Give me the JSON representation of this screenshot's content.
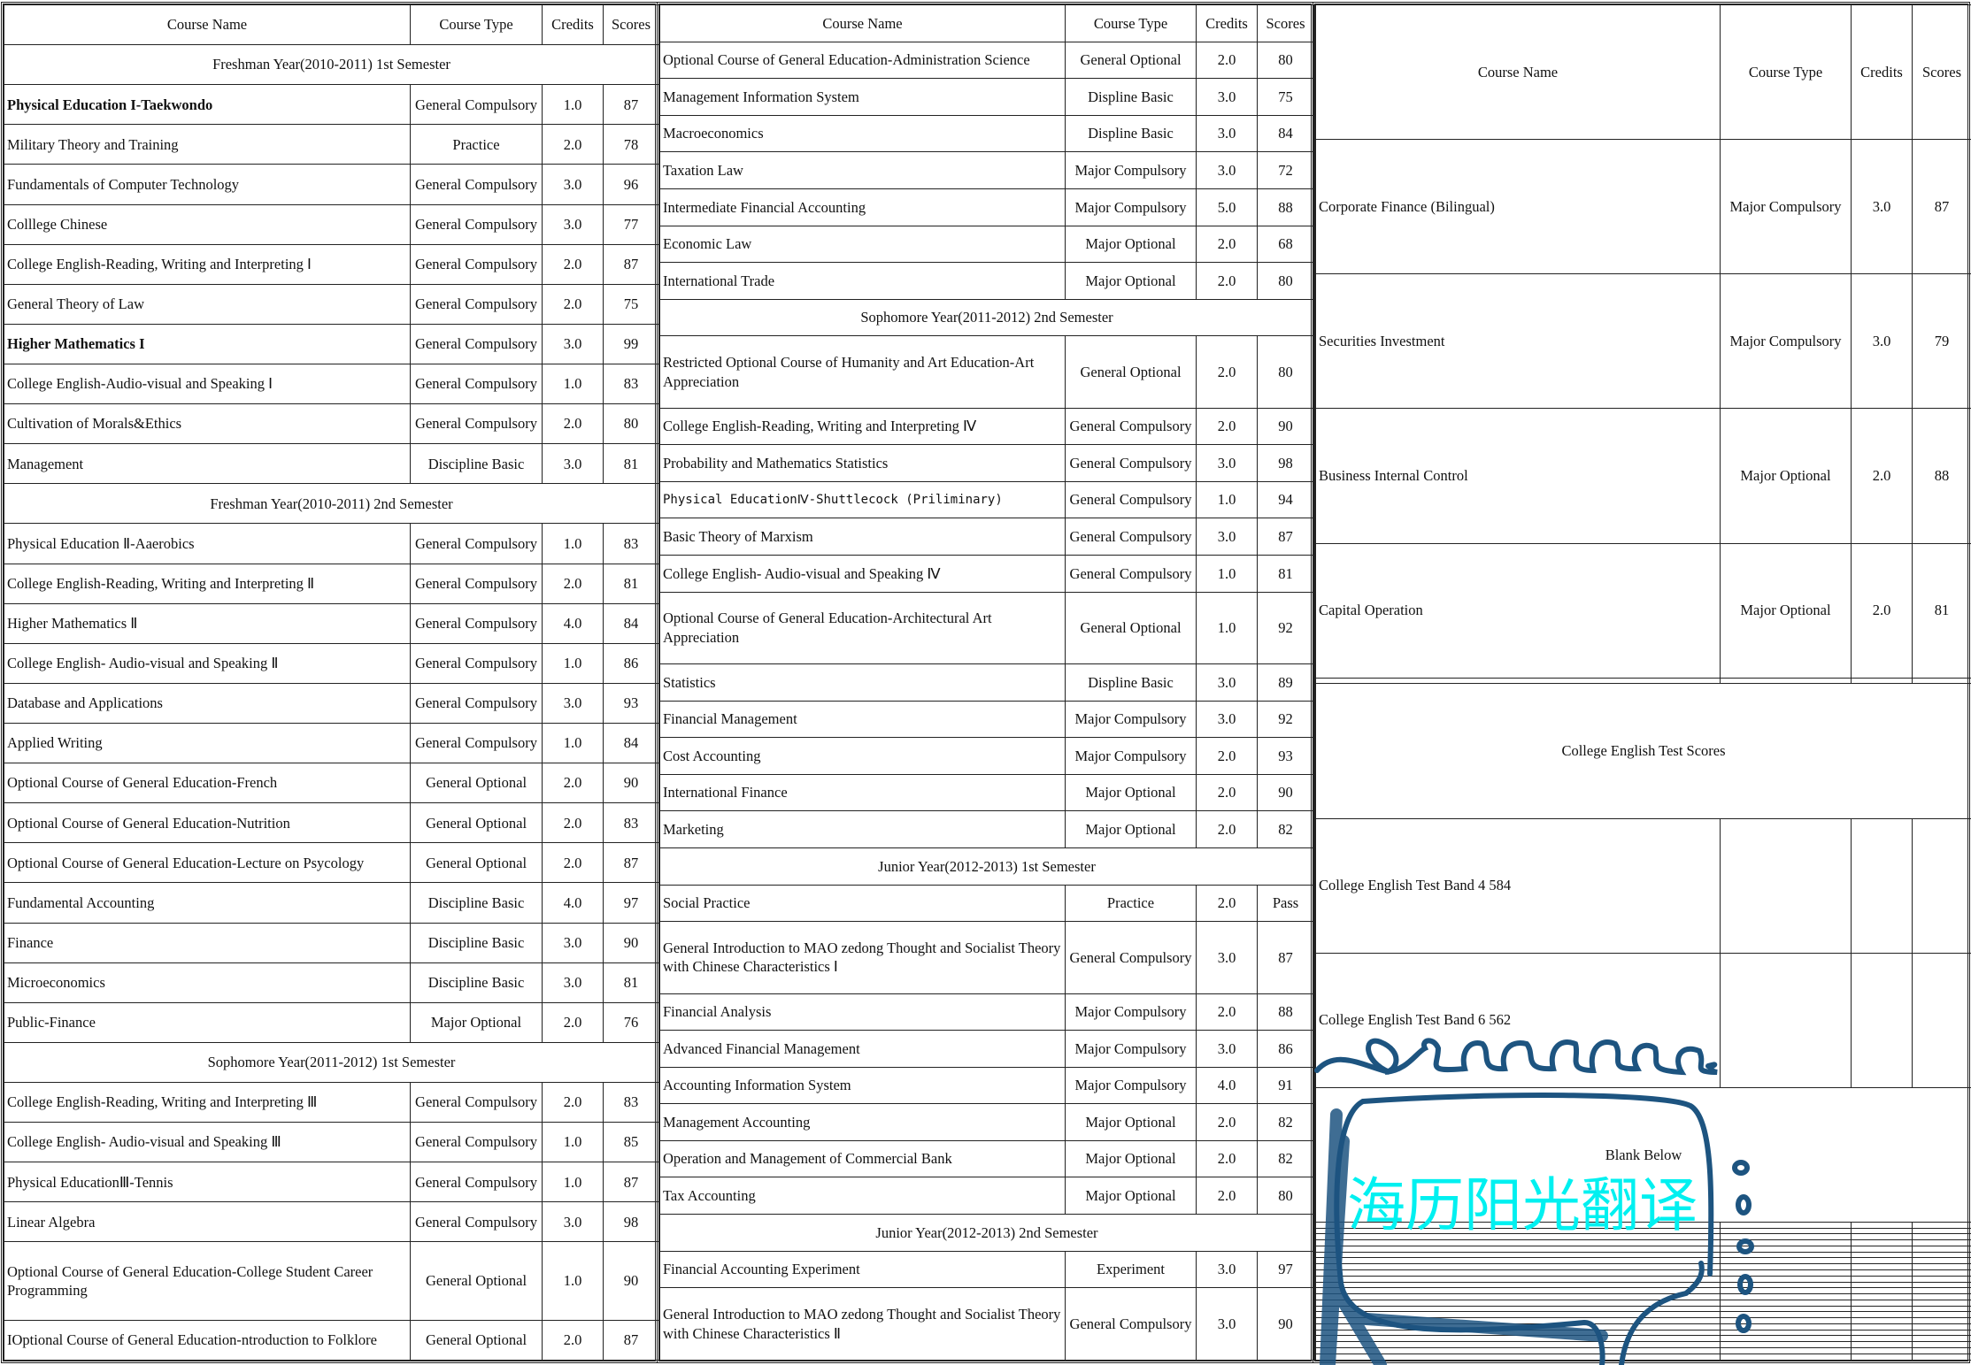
{
  "headers": [
    "Course Name",
    "Course Type",
    "Credits",
    "Scores"
  ],
  "columns": [
    {
      "rows": [
        {
          "section": "Freshman Year(2010-2011) 1st Semester"
        },
        {
          "name": "Physical Education I-Taekwondo",
          "type": "General Compulsory",
          "credits": "1.0",
          "score": "87",
          "bold": true
        },
        {
          "name": "Military Theory and Training",
          "type": "Practice",
          "credits": "2.0",
          "score": "78"
        },
        {
          "name": "Fundamentals of Computer Technology",
          "type": "General Compulsory",
          "credits": "3.0",
          "score": "96"
        },
        {
          "name": "Colllege Chinese",
          "type": "General Compulsory",
          "credits": "3.0",
          "score": "77"
        },
        {
          "name": "College English-Reading, Writing and Interpreting Ⅰ",
          "type": "General Compulsory",
          "credits": "2.0",
          "score": "87"
        },
        {
          "name": "General Theory of Law",
          "type": "General Compulsory",
          "credits": "2.0",
          "score": "75"
        },
        {
          "name": "Higher Mathematics I",
          "type": "General Compulsory",
          "credits": "3.0",
          "score": "99",
          "bold": true
        },
        {
          "name": "College English-Audio-visual and Speaking Ⅰ",
          "type": "General Compulsory",
          "credits": "1.0",
          "score": "83"
        },
        {
          "name": "Cultivation of Morals&Ethics",
          "type": "General Compulsory",
          "credits": "2.0",
          "score": "80"
        },
        {
          "name": "Management",
          "type": "Discipline Basic",
          "credits": "3.0",
          "score": "81"
        },
        {
          "section": "Freshman Year(2010-2011) 2nd Semester"
        },
        {
          "name": "Physical Education Ⅱ-Aaerobics",
          "type": "General Compulsory",
          "credits": "1.0",
          "score": "83"
        },
        {
          "name": "College English-Reading, Writing and Interpreting Ⅱ",
          "type": "General Compulsory",
          "credits": "2.0",
          "score": "81"
        },
        {
          "name": "Higher Mathematics Ⅱ",
          "type": "General Compulsory",
          "credits": "4.0",
          "score": "84"
        },
        {
          "name": "College English- Audio-visual and Speaking Ⅱ",
          "type": "General Compulsory",
          "credits": "1.0",
          "score": "86"
        },
        {
          "name": "Database and Applications",
          "type": "General Compulsory",
          "credits": "3.0",
          "score": "93"
        },
        {
          "name": "Applied Writing",
          "type": "General Compulsory",
          "credits": "1.0",
          "score": "84"
        },
        {
          "name": "Optional Course of General Education-French",
          "type": "General Optional",
          "credits": "2.0",
          "score": "90"
        },
        {
          "name": "Optional Course of General Education-Nutrition",
          "type": "General Optional",
          "credits": "2.0",
          "score": "83"
        },
        {
          "name": "Optional Course of General Education-Lecture on Psycology",
          "type": "General Optional",
          "credits": "2.0",
          "score": "87"
        },
        {
          "name": "Fundamental  Accounting",
          "type": "Discipline Basic",
          "credits": "4.0",
          "score": "97"
        },
        {
          "name": "Finance",
          "type": "Discipline Basic",
          "credits": "3.0",
          "score": "90"
        },
        {
          "name": "Microeconomics",
          "type": "Discipline Basic",
          "credits": "3.0",
          "score": "81"
        },
        {
          "name": "Public-Finance",
          "type": "Major Optional",
          "credits": "2.0",
          "score": "76"
        },
        {
          "section": "Sophomore Year(2011-2012) 1st Semester"
        },
        {
          "name": "College English-Reading, Writing and Interpreting Ⅲ",
          "type": "General Compulsory",
          "credits": "2.0",
          "score": "83"
        },
        {
          "name": "College English- Audio-visual and Speaking Ⅲ",
          "type": "General Compulsory",
          "credits": "1.0",
          "score": "85"
        },
        {
          "name": "Physical EducationⅢ-Tennis",
          "type": "General Compulsory",
          "credits": "1.0",
          "score": "87"
        },
        {
          "name": "Linear Algebra",
          "type": "General Compulsory",
          "credits": "3.0",
          "score": "98"
        },
        {
          "name": "Optional Course of General Education-College Student Career Programming",
          "type": "General Optional",
          "credits": "1.0",
          "score": "90"
        },
        {
          "name": "IOptional Course of General Education-ntroduction to Folklore",
          "type": "General Optional",
          "credits": "2.0",
          "score": "87"
        }
      ]
    },
    {
      "rows": [
        {
          "name": "Optional Course of General Education-Administration Science",
          "type": "General Optional",
          "credits": "2.0",
          "score": "80"
        },
        {
          "name": "Management Information System",
          "type": "Displine Basic",
          "credits": "3.0",
          "score": "75"
        },
        {
          "name": "Macroeconomics",
          "type": "Displine Basic",
          "credits": "3.0",
          "score": "84"
        },
        {
          "name": "Taxation Law",
          "type": "Major Compulsory",
          "credits": "3.0",
          "score": "72"
        },
        {
          "name": "Intermediate Financial Accounting",
          "type": "Major Compulsory",
          "credits": "5.0",
          "score": "88"
        },
        {
          "name": "Economic Law",
          "type": "Major Optional",
          "credits": "2.0",
          "score": "68"
        },
        {
          "name": "International Trade",
          "type": "Major Optional",
          "credits": "2.0",
          "score": "80"
        },
        {
          "section": "Sophomore Year(2011-2012) 2nd Semester"
        },
        {
          "name": "Restricted Optional Course of  Humanity and Art Education-Art Appreciation",
          "type": "General Optional",
          "credits": "2.0",
          "score": "80"
        },
        {
          "name": "College English-Reading, Writing and Interpreting Ⅳ",
          "type": "General Compulsory",
          "credits": "2.0",
          "score": "90"
        },
        {
          "name": "Probability and Mathematics Statistics",
          "type": "General Compulsory",
          "credits": "3.0",
          "score": "98"
        },
        {
          "name": "Physical EducationⅣ-Shuttlecock (Priliminary)",
          "type": "General Compulsory",
          "credits": "1.0",
          "score": "94",
          "mono": true
        },
        {
          "name": "Basic Theory of Marxism",
          "type": "General Compulsory",
          "credits": "3.0",
          "score": "87"
        },
        {
          "name": "College English- Audio-visual and Speaking Ⅳ",
          "type": "General Compulsory",
          "credits": "1.0",
          "score": "81"
        },
        {
          "name": "Optional Course of General Education-Architectural Art Appreciation",
          "type": "General Optional",
          "credits": "1.0",
          "score": "92"
        },
        {
          "name": "Statistics",
          "type": "Displine Basic",
          "credits": "3.0",
          "score": "89"
        },
        {
          "name": "Financial Management",
          "type": "Major Compulsory",
          "credits": "3.0",
          "score": "92"
        },
        {
          "name": "Cost Accounting",
          "type": "Major Compulsory",
          "credits": "2.0",
          "score": "93"
        },
        {
          "name": "International Finance",
          "type": "Major Optional",
          "credits": "2.0",
          "score": "90"
        },
        {
          "name": "Marketing",
          "type": "Major Optional",
          "credits": "2.0",
          "score": "82"
        },
        {
          "section": "Junior Year(2012-2013) 1st Semester"
        },
        {
          "name": "Social Practice",
          "type": "Practice",
          "credits": "2.0",
          "score": "Pass"
        },
        {
          "name": "General Introduction to MAO zedong Thought and Socialist Theory with Chinese Characteristics Ⅰ",
          "type": "General Compulsory",
          "credits": "3.0",
          "score": "87"
        },
        {
          "name": "Financial Analysis",
          "type": "Major Compulsory",
          "credits": "2.0",
          "score": "88"
        },
        {
          "name": "Advanced Financial Management",
          "type": "Major Compulsory",
          "credits": "3.0",
          "score": "86"
        },
        {
          "name": "Accounting Information System",
          "type": "Major Compulsory",
          "credits": "4.0",
          "score": "91"
        },
        {
          "name": "Management Accounting",
          "type": "Major Optional",
          "credits": "2.0",
          "score": "82"
        },
        {
          "name": "Operation and Management of Commercial Bank",
          "type": "Major Optional",
          "credits": "2.0",
          "score": "82"
        },
        {
          "name": "Tax Accounting",
          "type": "Major Optional",
          "credits": "2.0",
          "score": "80"
        },
        {
          "section": "Junior Year(2012-2013) 2nd Semester"
        },
        {
          "name": "Financial Accounting Experiment",
          "type": "Experiment",
          "credits": "3.0",
          "score": "97"
        },
        {
          "name": "General Introduction to MAO zedong Thought and Socialist Theory with Chinese Characteristics Ⅱ",
          "type": "General Compulsory",
          "credits": "3.0",
          "score": "90"
        }
      ]
    },
    {
      "rows": [
        {
          "name": "Corporate Finance (Bilingual)",
          "type": "Major Compulsory",
          "credits": "3.0",
          "score": "87"
        },
        {
          "name": "Securities Investment",
          "type": "Major Compulsory",
          "credits": "3.0",
          "score": "79"
        },
        {
          "name": "Business Internal Control",
          "type": "Major Optional",
          "credits": "2.0",
          "score": "88"
        },
        {
          "name": "Capital Operation",
          "type": "Major Optional",
          "credits": "2.0",
          "score": "81"
        },
        {
          "name": "",
          "type": "",
          "credits": "",
          "score": ""
        },
        {
          "section": "College English Test Scores"
        },
        {
          "name": "College English Test Band 4     584",
          "type": "",
          "credits": "",
          "score": ""
        },
        {
          "name": "College English Test Band 6     562",
          "type": "",
          "credits": "",
          "score": ""
        },
        {
          "section": "Blank Below"
        },
        {
          "name": "",
          "type": "",
          "credits": "",
          "score": ""
        },
        {
          "name": "",
          "type": "",
          "credits": "",
          "score": ""
        },
        {
          "name": "",
          "type": "",
          "credits": "",
          "score": ""
        },
        {
          "name": "",
          "type": "",
          "credits": "",
          "score": ""
        },
        {
          "name": "",
          "type": "",
          "credits": "",
          "score": ""
        },
        {
          "name": "",
          "type": "",
          "credits": "",
          "score": ""
        },
        {
          "name": "",
          "type": "",
          "credits": "",
          "score": ""
        },
        {
          "name": "",
          "type": "",
          "credits": "",
          "score": ""
        },
        {
          "name": "",
          "type": "",
          "credits": "",
          "score": ""
        },
        {
          "name": "",
          "type": "",
          "credits": "",
          "score": ""
        },
        {
          "name": "",
          "type": "",
          "credits": "",
          "score": ""
        },
        {
          "name": "",
          "type": "",
          "credits": "",
          "score": ""
        },
        {
          "name": "",
          "type": "",
          "credits": "",
          "score": ""
        },
        {
          "name": "",
          "type": "",
          "credits": "",
          "score": ""
        },
        {
          "name": "",
          "type": "",
          "credits": "",
          "score": ""
        },
        {
          "name": "",
          "type": "",
          "credits": "",
          "score": ""
        },
        {
          "name": "",
          "type": "",
          "credits": "",
          "score": ""
        },
        {
          "name": "",
          "type": "",
          "credits": "",
          "score": ""
        },
        {
          "name": "",
          "type": "",
          "credits": "",
          "score": ""
        },
        {
          "name": "",
          "type": "",
          "credits": "",
          "score": ""
        },
        {
          "name": "",
          "type": "",
          "credits": "",
          "score": ""
        },
        {
          "name": "",
          "type": "",
          "credits": "",
          "score": ""
        },
        {
          "name": "",
          "type": "",
          "credits": "",
          "score": ""
        }
      ]
    }
  ],
  "watermark": {
    "text": "海历阳光翻译",
    "text_color": "#00f0f0",
    "frame_color": "#1d5480"
  }
}
